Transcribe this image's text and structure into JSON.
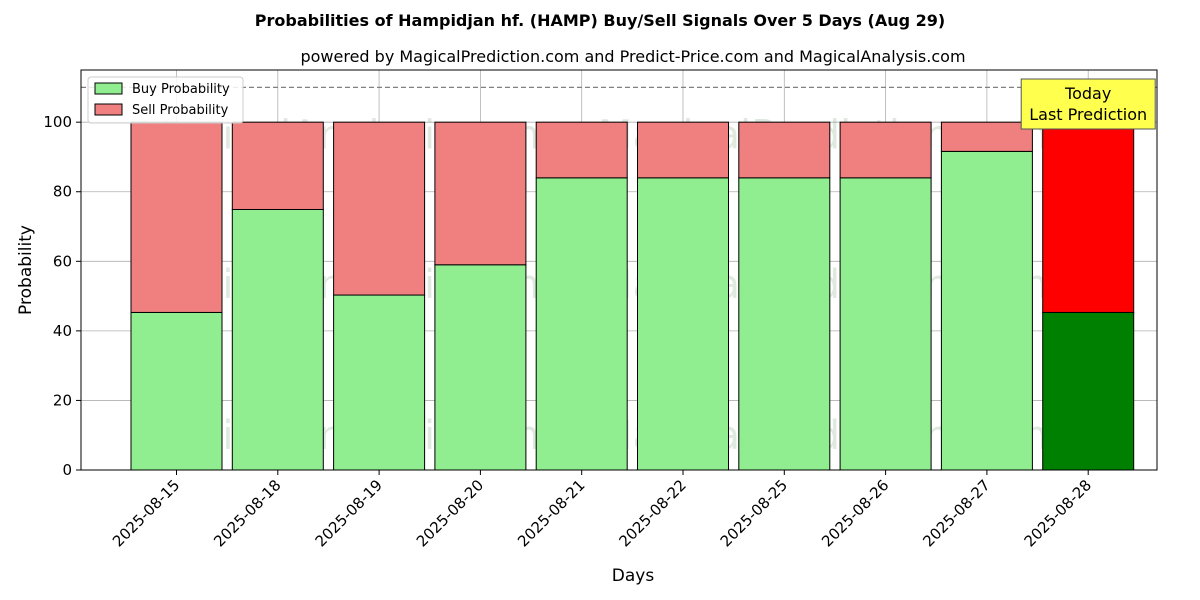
{
  "chart_data": {
    "type": "bar",
    "title": "Probabilities of Hampidjan hf. (HAMP) Buy/Sell Signals Over 5 Days (Aug 29)",
    "subtitle": "powered by MagicalPrediction.com and Predict-Price.com and MagicalAnalysis.com",
    "xlabel": "Days",
    "ylabel": "Probability",
    "ylim": [
      0,
      115
    ],
    "yticks": [
      0,
      20,
      40,
      60,
      80,
      100
    ],
    "grid": true,
    "stacked": true,
    "legend_position": "top-left",
    "categories": [
      "2025-08-15",
      "2025-08-18",
      "2025-08-19",
      "2025-08-20",
      "2025-08-21",
      "2025-08-22",
      "2025-08-25",
      "2025-08-26",
      "2025-08-27",
      "2025-08-28"
    ],
    "series": [
      {
        "name": "Buy Probability",
        "color": "#90ee90",
        "highlight_color": "#008000",
        "values": [
          45.3,
          74.9,
          50.3,
          59.0,
          84.0,
          84.0,
          84.0,
          84.0,
          91.6,
          45.3
        ]
      },
      {
        "name": "Sell Probability",
        "color": "#f08080",
        "highlight_color": "#ff0000",
        "values": [
          54.7,
          25.1,
          49.7,
          41.0,
          16.0,
          16.0,
          16.0,
          16.0,
          8.4,
          54.7
        ]
      }
    ],
    "highlight_index": 9,
    "reference_line": {
      "y": 110,
      "style": "dashed",
      "color": "#808080"
    },
    "annotation": {
      "lines": [
        "Today",
        "Last Prediction"
      ],
      "category_index": 9,
      "background": "#ffff4d"
    },
    "watermarks": [
      "MagicalAnalysis.com",
      "MagicalPrediction.com"
    ]
  }
}
